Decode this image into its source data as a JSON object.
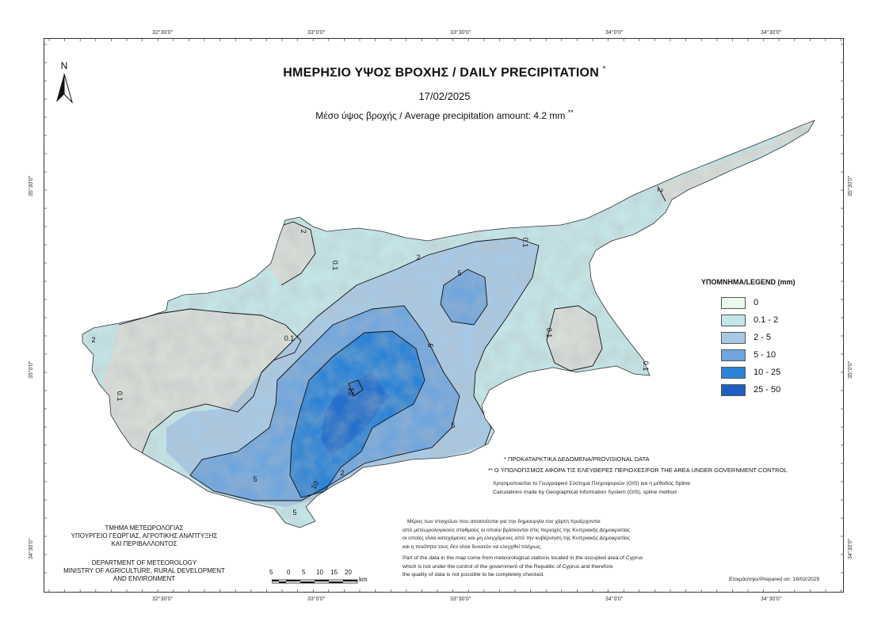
{
  "map": {
    "title": "ΗΜΕΡΗΣΙΟ ΥΨΟΣ ΒΡΟΧΗΣ / DAILY PRECIPITATION",
    "title_mark": "*",
    "date": "17/02/2025",
    "average": "Μέσο ύψος βροχής / Average precipitation amount: 4.2 mm",
    "average_mark": "**",
    "north_label": "N"
  },
  "graticule": {
    "top": [
      "32°30'0\"",
      "33°0'0\"",
      "33°30'0\"",
      "34°0'0\"",
      "34°30'0\""
    ],
    "bottom": [
      "32°30'0\"",
      "33°0'0\"",
      "33°30'0\"",
      "34°0'0\"",
      "34°30'0\""
    ],
    "left": [
      "35°30'0\"",
      "35°0'0\"",
      "34°30'0\""
    ],
    "right": [
      "35°30'0\"",
      "35°0'0\"",
      "34°30'0\""
    ]
  },
  "legend": {
    "title": "ΥΠΟΜΝΗΜΑ/LEGEND (mm)",
    "classes": [
      {
        "label": "0",
        "color": "#eef9ee"
      },
      {
        "label": "0.1 - 2",
        "color": "#c3e6e8"
      },
      {
        "label": "2 - 5",
        "color": "#a7c9e6"
      },
      {
        "label": "5 - 10",
        "color": "#6fa6df"
      },
      {
        "label": "10 - 25",
        "color": "#2b83d6"
      },
      {
        "label": "25 - 50",
        "color": "#1f5fc2"
      }
    ]
  },
  "contours": [
    "2",
    "0.1",
    "2",
    "5",
    "0.1",
    "2",
    "0.1",
    "5",
    "0.1",
    "10",
    "5",
    "5",
    "10",
    "0.1",
    "2",
    "5",
    "2",
    "0.1"
  ],
  "notes": {
    "provisional": "* ΠΡΟΚΑΤΑΡΚΤΙΚΑ ΔΕΔΟΜΕΝΑ/PROVISIONAL DATA",
    "area": "** Ο ΥΠΟΛΟΓΙΣΜΟΣ ΑΦΟΡΑ ΤΙΣ ΕΛΕΥΘΕΡΕΣ ΠΕΡΙΟΧΕΣ/FOR THE AREA UNDER GOVERNMENT CONTROL",
    "gis_gr": "Χρησιμοποιείται το Γεωγραφικό Σύστημα Πληροφοριών (GIS) και η μέθοδος Spline",
    "gis_en": "Calculations made by Geographical Information System (GIS), spline method",
    "data_gr": [
      "Μέρος των στοιχείων που απαιτούνται για την δημιουργία του χάρτη προέρχονται",
      "από μετεωρολογικούς σταθμούς οι οποίοι βρίσκονται στις περιοχές της Κυπριακής Δημοκρατίας",
      "οι οποίες είναι κατεχόμενες και μη ελεγχόμενες από την κυβέρνηση της Κυπριακής Δημοκρατίας",
      "και η ποιότητα τους δεν είναι δυνατόν να ελεγχθεί πλήρως."
    ],
    "data_en": [
      "Part of the data in the map come from meteorological stations located in the occupied area of Cyprus",
      "which is not under the control of the government of the Republic of Cyprus and therefore",
      "the quality of data is not possible to be completely checked."
    ],
    "prepared": "Ετοιμάστηκε/Prepared on: 18/02/2025"
  },
  "department": {
    "gr": [
      "ΤΜΗΜΑ ΜΕΤΕΩΡΟΛΟΓΙΑΣ",
      "ΥΠΟΥΡΓΕΙΟ ΓΕΩΡΓΙΑΣ, ΑΓΡΟΤΙΚΗΣ ΑΝΑΠΤΥΞΗΣ",
      "ΚΑΙ ΠΕΡΙΒΑΛΛΟΝΤΟΣ"
    ],
    "en": [
      "DEPARTMENT OF METEOROLOGY",
      "MINISTRY OF AGRICULTURE, RURAL DEVELOPMENT",
      "AND ENVIRONMENT"
    ]
  },
  "scale_bar": {
    "labels": [
      "5",
      "0",
      "5",
      "10",
      "15",
      "20"
    ],
    "unit": "km"
  }
}
